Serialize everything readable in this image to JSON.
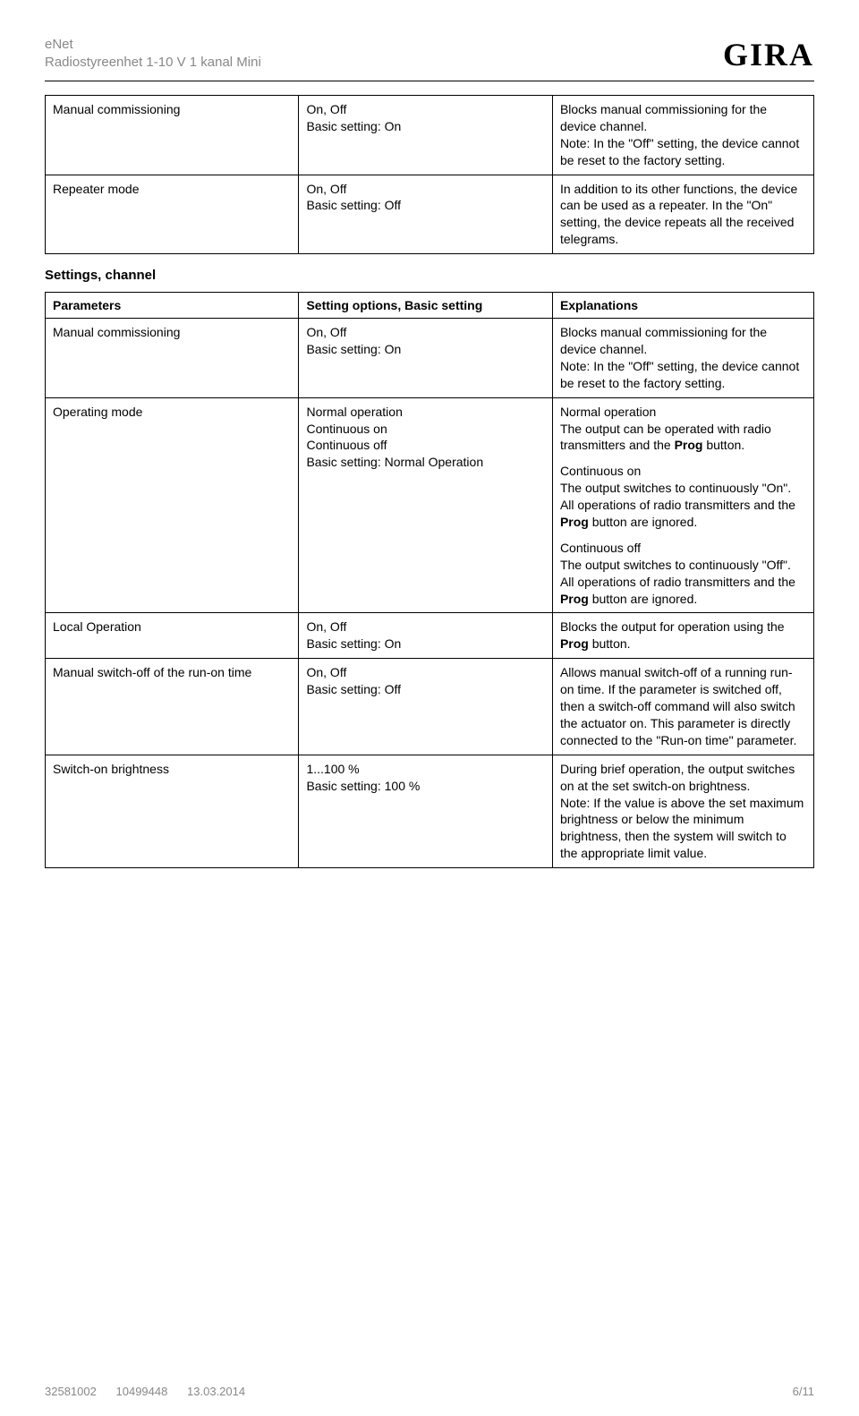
{
  "header": {
    "line1": "eNet",
    "line2": "Radiostyreenhet 1-10 V 1 kanal Mini",
    "logo": "GIRA"
  },
  "table1": {
    "rows": [
      {
        "param": "Manual commissioning",
        "opts_line1": "On, Off",
        "opts_line2": "Basic setting: On",
        "exp": "Blocks manual commissioning for the device channel.\nNote: In the \"Off\" setting, the device cannot be reset to the factory setting."
      },
      {
        "param": "Repeater mode",
        "opts_line1": "On, Off",
        "opts_line2": "Basic setting: Off",
        "exp": "In addition to its other functions, the device can be used as a repeater. In the \"On\" setting, the device repeats all the received telegrams."
      }
    ]
  },
  "section_title": "Settings, channel",
  "table2": {
    "head": {
      "c1": "Parameters",
      "c2": "Setting options, Basic setting",
      "c3": "Explanations"
    },
    "rows": [
      {
        "param": "Manual commissioning",
        "opts_line1": "On, Off",
        "opts_line2": "Basic setting: On",
        "exp": "Blocks manual commissioning for the device channel.\nNote: In the \"Off\" setting, the device cannot be reset to the factory setting."
      },
      {
        "param": "Operating mode",
        "opts_line1": "Normal operation",
        "opts_line2": "Continuous on",
        "opts_line3": "Continuous off",
        "opts_line4": "Basic setting: Normal Operation",
        "exp_blocks": [
          {
            "title": "Normal operation",
            "body": "The output can be operated with radio transmitters and the ",
            "bold": "Prog",
            "tail": " button."
          },
          {
            "title": "Continuous on",
            "body": "The output switches to continuously \"On\". All operations of radio transmitters and the ",
            "bold": "Prog",
            "tail": " button are ignored."
          },
          {
            "title": "Continuous off",
            "body": "The output switches to continuously \"Off\". All operations of radio transmitters and the ",
            "bold": "Prog",
            "tail": " button are ignored."
          }
        ]
      },
      {
        "param": "Local Operation",
        "opts_line1": "On, Off",
        "opts_line2": "Basic setting: On",
        "exp_pre": "Blocks the output for operation using the ",
        "exp_bold": "Prog",
        "exp_post": " button."
      },
      {
        "param": "Manual switch-off of the run-on time",
        "opts_line1": "On, Off",
        "opts_line2": "Basic setting: Off",
        "exp": "Allows manual switch-off of a running run-on time. If the parameter is switched off, then a switch-off command will also switch the actuator on. This parameter is directly connected to the \"Run-on time\" parameter."
      },
      {
        "param": "Switch-on brightness",
        "opts_line1": "1...100 %",
        "opts_line2": "Basic setting: 100 %",
        "exp": "During brief operation, the output switches on at the set switch-on brightness.\nNote: If the value is above the set maximum brightness or below the minimum brightness, then the system will switch to the appropriate limit value."
      }
    ]
  },
  "footer": {
    "left1": "32581002",
    "left2": "10499448",
    "left3": "13.03.2014",
    "right": "6/11"
  }
}
